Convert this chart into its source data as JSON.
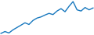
{
  "values": [
    1,
    1.8,
    1.2,
    2.5,
    3.5,
    4.5,
    5.5,
    4.8,
    6.5,
    7.5,
    8.0,
    8.8,
    9.5,
    9.0,
    10.5,
    11.5,
    10.2,
    12.5,
    14.5,
    11.0,
    10.5,
    12.0,
    11.0,
    11.8
  ],
  "line_color": "#1878be",
  "background_color": "#ffffff",
  "linewidth": 1.0
}
